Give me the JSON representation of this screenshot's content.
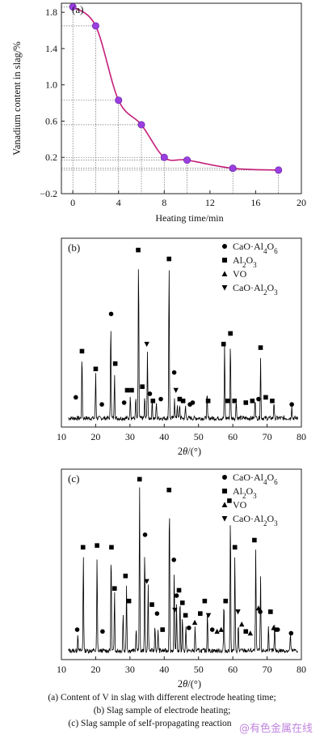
{
  "chart_data": [
    {
      "type": "line",
      "panel_label": "(a)",
      "xlabel": "Heating time/min",
      "ylabel": "Vanadium content in slag/%",
      "xlim": [
        -1,
        20
      ],
      "ylim": [
        -0.2,
        1.9
      ],
      "x_ticks": [
        0,
        4,
        8,
        12,
        16,
        20
      ],
      "y_ticks": [
        -0.2,
        0.2,
        0.6,
        1.0,
        1.4,
        1.8
      ],
      "x_tick_labels": [
        "0",
        "4",
        "8",
        "12",
        "16",
        "20"
      ],
      "y_tick_labels": [
        "−0.2",
        "0.2",
        "0.6",
        "1.0",
        "1.4",
        "1.8"
      ],
      "series": [
        {
          "x": [
            0,
            2,
            4,
            6,
            8,
            10,
            14,
            18
          ],
          "y": [
            1.86,
            1.65,
            0.83,
            0.56,
            0.2,
            0.17,
            0.08,
            0.06
          ]
        }
      ],
      "colors": {
        "line": "#c41f7a",
        "marker": "#9b3fe0"
      },
      "grid": false
    },
    {
      "type": "line",
      "panel_label": "(b)",
      "xlabel": "2θ/(°)",
      "xlim": [
        10,
        80
      ],
      "x_ticks": [
        10,
        20,
        30,
        40,
        50,
        60,
        70,
        80
      ],
      "x_tick_labels": [
        "10",
        "20",
        "30",
        "40",
        "50",
        "60",
        "70",
        "80"
      ],
      "legend": [
        {
          "marker": "●",
          "label": "CaO·Al4O6"
        },
        {
          "marker": "■",
          "label": "Al2O3"
        },
        {
          "marker": "▲",
          "label": "VO"
        },
        {
          "marker": "▼",
          "label": "CaO·Al2O3"
        }
      ],
      "peaks": [
        {
          "x": 16.0,
          "h": 0.36
        },
        {
          "x": 20.0,
          "h": 0.26
        },
        {
          "x": 24.4,
          "h": 0.56
        },
        {
          "x": 25.5,
          "h": 0.26
        },
        {
          "x": 30.1,
          "h": 0.14
        },
        {
          "x": 31.7,
          "h": 0.12
        },
        {
          "x": 32.5,
          "h": 0.93
        },
        {
          "x": 34.3,
          "h": 0.12
        },
        {
          "x": 35.1,
          "h": 0.38
        },
        {
          "x": 36.5,
          "h": 0.1
        },
        {
          "x": 37.7,
          "h": 0.09
        },
        {
          "x": 41.4,
          "h": 0.89
        },
        {
          "x": 43.0,
          "h": 0.12
        },
        {
          "x": 43.8,
          "h": 0.08
        },
        {
          "x": 44.5,
          "h": 0.08
        },
        {
          "x": 46.2,
          "h": 0.07
        },
        {
          "x": 52.5,
          "h": 0.14
        },
        {
          "x": 57.6,
          "h": 0.42
        },
        {
          "x": 59.3,
          "h": 0.44
        },
        {
          "x": 61.0,
          "h": 0.11
        },
        {
          "x": 66.5,
          "h": 0.12
        },
        {
          "x": 68.1,
          "h": 0.34
        },
        {
          "x": 72.0,
          "h": 0.1
        },
        {
          "x": 77.2,
          "h": 0.08
        }
      ],
      "markers": [
        {
          "x": 14.2,
          "y": 0.14,
          "s": "●"
        },
        {
          "x": 16.0,
          "y": 0.4,
          "s": "■"
        },
        {
          "x": 20.0,
          "y": 0.3,
          "s": "■"
        },
        {
          "x": 21.8,
          "y": 0.1,
          "s": "●"
        },
        {
          "x": 24.5,
          "y": 0.61,
          "s": "●"
        },
        {
          "x": 25.7,
          "y": 0.33,
          "s": "■"
        },
        {
          "x": 28.3,
          "y": 0.11,
          "s": "●"
        },
        {
          "x": 29.2,
          "y": 0.18,
          "s": "■"
        },
        {
          "x": 30.5,
          "y": 0.18,
          "s": "■"
        },
        {
          "x": 32.4,
          "y": 0.97,
          "s": "■"
        },
        {
          "x": 33.6,
          "y": 0.2,
          "s": "■"
        },
        {
          "x": 34.9,
          "y": 0.44,
          "s": "▼"
        },
        {
          "x": 35.8,
          "y": 0.16,
          "s": "●"
        },
        {
          "x": 36.7,
          "y": 0.12,
          "s": "■"
        },
        {
          "x": 39.0,
          "y": 0.13,
          "s": "●"
        },
        {
          "x": 41.4,
          "y": 0.92,
          "s": "■"
        },
        {
          "x": 42.9,
          "y": 0.28,
          "s": "●"
        },
        {
          "x": 43.4,
          "y": 0.18,
          "s": "▼"
        },
        {
          "x": 44.5,
          "y": 0.13,
          "s": "■"
        },
        {
          "x": 45.5,
          "y": 0.12,
          "s": "■"
        },
        {
          "x": 47.5,
          "y": 0.1,
          "s": "●"
        },
        {
          "x": 48.3,
          "y": 0.11,
          "s": "●"
        },
        {
          "x": 52.8,
          "y": 0.12,
          "s": "■"
        },
        {
          "x": 57.3,
          "y": 0.44,
          "s": "■"
        },
        {
          "x": 58.5,
          "y": 0.12,
          "s": "■"
        },
        {
          "x": 59.3,
          "y": 0.5,
          "s": "■"
        },
        {
          "x": 60.5,
          "y": 0.12,
          "s": "■"
        },
        {
          "x": 63.8,
          "y": 0.11,
          "s": "■"
        },
        {
          "x": 65.7,
          "y": 0.12,
          "s": "■"
        },
        {
          "x": 67.5,
          "y": 0.13,
          "s": "●"
        },
        {
          "x": 68.1,
          "y": 0.42,
          "s": "■"
        },
        {
          "x": 69.6,
          "y": 0.14,
          "s": "■"
        },
        {
          "x": 71.5,
          "y": 0.12,
          "s": "■"
        },
        {
          "x": 77.2,
          "y": 0.1,
          "s": "●"
        }
      ]
    },
    {
      "type": "line",
      "panel_label": "(c)",
      "xlabel": "2θ/(°)",
      "xlim": [
        10,
        80
      ],
      "x_ticks": [
        10,
        20,
        30,
        40,
        50,
        60,
        70,
        80
      ],
      "x_tick_labels": [
        "10",
        "20",
        "30",
        "40",
        "50",
        "60",
        "70",
        "80"
      ],
      "legend": [
        {
          "marker": "●",
          "label": "CaO·Al4O6"
        },
        {
          "marker": "■",
          "label": "Al2O3"
        },
        {
          "marker": "▲",
          "label": "VO"
        },
        {
          "marker": "▼",
          "label": "CaO·Al2O3"
        }
      ],
      "peaks": [
        {
          "x": 14.8,
          "h": 0.1
        },
        {
          "x": 16.4,
          "h": 0.55
        },
        {
          "x": 20.4,
          "h": 0.52
        },
        {
          "x": 24.5,
          "h": 0.57
        },
        {
          "x": 25.5,
          "h": 0.34
        },
        {
          "x": 28.0,
          "h": 0.22
        },
        {
          "x": 29.0,
          "h": 0.37
        },
        {
          "x": 31.8,
          "h": 0.13
        },
        {
          "x": 32.8,
          "h": 0.93
        },
        {
          "x": 34.3,
          "h": 0.58
        },
        {
          "x": 35.3,
          "h": 0.38
        },
        {
          "x": 37.3,
          "h": 0.15
        },
        {
          "x": 38.2,
          "h": 0.12
        },
        {
          "x": 41.5,
          "h": 0.88
        },
        {
          "x": 42.9,
          "h": 0.45
        },
        {
          "x": 43.6,
          "h": 0.25
        },
        {
          "x": 44.6,
          "h": 0.3
        },
        {
          "x": 45.3,
          "h": 0.2
        },
        {
          "x": 46.3,
          "h": 0.14
        },
        {
          "x": 49.0,
          "h": 0.14
        },
        {
          "x": 52.6,
          "h": 0.23
        },
        {
          "x": 57.4,
          "h": 0.28
        },
        {
          "x": 59.3,
          "h": 0.78
        },
        {
          "x": 60.6,
          "h": 0.53
        },
        {
          "x": 61.6,
          "h": 0.15
        },
        {
          "x": 66.7,
          "h": 0.57
        },
        {
          "x": 68.1,
          "h": 0.41
        },
        {
          "x": 70.4,
          "h": 0.15
        },
        {
          "x": 72.2,
          "h": 0.14
        },
        {
          "x": 76.8,
          "h": 0.1
        }
      ],
      "markers": [
        {
          "x": 14.6,
          "y": 0.14,
          "s": "●"
        },
        {
          "x": 16.3,
          "y": 0.6,
          "s": "■"
        },
        {
          "x": 20.4,
          "y": 0.61,
          "s": "■"
        },
        {
          "x": 22.0,
          "y": 0.13,
          "s": "●"
        },
        {
          "x": 24.6,
          "y": 0.6,
          "s": "■"
        },
        {
          "x": 25.5,
          "y": 0.37,
          "s": "■"
        },
        {
          "x": 28.7,
          "y": 0.44,
          "s": "■"
        },
        {
          "x": 29.7,
          "y": 0.3,
          "s": "■"
        },
        {
          "x": 32.8,
          "y": 0.98,
          "s": "■"
        },
        {
          "x": 34.4,
          "y": 0.67,
          "s": "●"
        },
        {
          "x": 34.9,
          "y": 0.41,
          "s": "▼"
        },
        {
          "x": 36.4,
          "y": 0.28,
          "s": "■"
        },
        {
          "x": 37.9,
          "y": 0.23,
          "s": "●"
        },
        {
          "x": 39.5,
          "y": 0.14,
          "s": "■"
        },
        {
          "x": 41.4,
          "y": 0.92,
          "s": "■"
        },
        {
          "x": 42.8,
          "y": 0.53,
          "s": "●"
        },
        {
          "x": 43.6,
          "y": 0.33,
          "s": "●"
        },
        {
          "x": 44.3,
          "y": 0.36,
          "s": "■"
        },
        {
          "x": 45.3,
          "y": 0.29,
          "s": "■"
        },
        {
          "x": 43.1,
          "y": 0.25,
          "s": "▼"
        },
        {
          "x": 46.2,
          "y": 0.22,
          "s": "■"
        },
        {
          "x": 47.2,
          "y": 0.15,
          "s": "●"
        },
        {
          "x": 48.9,
          "y": 0.18,
          "s": "▲"
        },
        {
          "x": 50.5,
          "y": 0.23,
          "s": "■"
        },
        {
          "x": 51.8,
          "y": 0.3,
          "s": "■"
        },
        {
          "x": 52.9,
          "y": 0.22,
          "s": "▼"
        },
        {
          "x": 54.0,
          "y": 0.14,
          "s": "●"
        },
        {
          "x": 55.4,
          "y": 0.13,
          "s": "▲"
        },
        {
          "x": 56.6,
          "y": 0.14,
          "s": "▲"
        },
        {
          "x": 57.9,
          "y": 0.3,
          "s": "■"
        },
        {
          "x": 59.0,
          "y": 0.86,
          "s": "■"
        },
        {
          "x": 60.6,
          "y": 0.6,
          "s": "■"
        },
        {
          "x": 61.5,
          "y": 0.24,
          "s": "▼"
        },
        {
          "x": 62.6,
          "y": 0.17,
          "s": "▲"
        },
        {
          "x": 63.8,
          "y": 0.13,
          "s": "■"
        },
        {
          "x": 65.1,
          "y": 0.12,
          "s": "▲"
        },
        {
          "x": 66.3,
          "y": 0.64,
          "s": "■"
        },
        {
          "x": 67.5,
          "y": 0.26,
          "s": "▲"
        },
        {
          "x": 68.0,
          "y": 0.24,
          "s": "●"
        },
        {
          "x": 71.0,
          "y": 0.24,
          "s": "■"
        },
        {
          "x": 71.9,
          "y": 0.15,
          "s": "▲"
        },
        {
          "x": 72.6,
          "y": 0.14,
          "s": "●"
        },
        {
          "x": 73.1,
          "y": 0.14,
          "s": "●"
        },
        {
          "x": 77.0,
          "y": 0.12,
          "s": "●"
        }
      ]
    }
  ],
  "caption": {
    "a": "(a)  Content  of  V  in  slag  with  different electrode heating time;",
    "b": "(b)  Slag  sample  of  electrode  heating;",
    "c": "(c) Slag sample of self-propagating reaction"
  },
  "watermark": "@有色金属在线"
}
